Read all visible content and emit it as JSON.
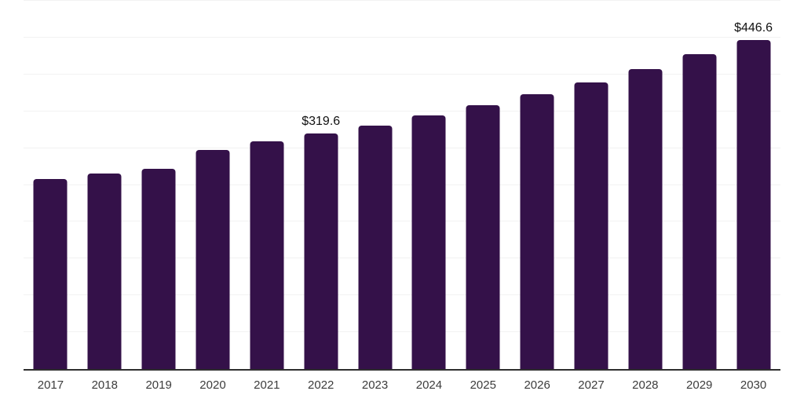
{
  "chart": {
    "background": "#ffffff",
    "bar_color": "#341149",
    "axis_line_color": "#2e2e2e",
    "gridline_color": "#f2f2f2",
    "tick_label_color": "#3c3c3c",
    "data_label_color": "#111111"
  },
  "chart_data": {
    "type": "bar",
    "title": "",
    "xlabel": "",
    "ylabel": "",
    "categories": [
      "2017",
      "2018",
      "2019",
      "2020",
      "2021",
      "2022",
      "2023",
      "2024",
      "2025",
      "2026",
      "2027",
      "2028",
      "2029",
      "2030"
    ],
    "values": [
      257.5,
      265.5,
      272,
      297,
      309,
      319.6,
      330.5,
      344.5,
      358.5,
      373.5,
      389.5,
      407.5,
      427,
      446.6
    ],
    "data_labels": [
      "",
      "",
      "",
      "",
      "",
      "$319.6",
      "",
      "",
      "",
      "",
      "",
      "",
      "",
      "$446.6"
    ],
    "value_prefix": "$",
    "ylim": [
      0,
      500
    ],
    "gridline_interval": 50,
    "grid": true,
    "legend": "none",
    "y_axis_ticks_visible": false
  }
}
